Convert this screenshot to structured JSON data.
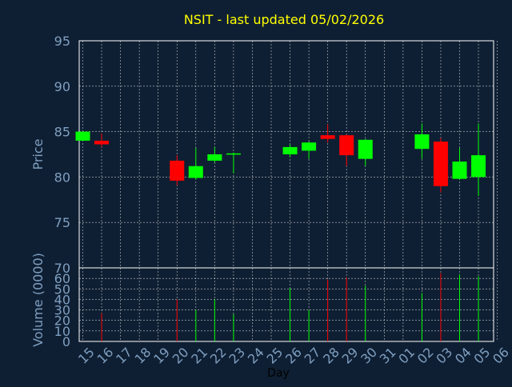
{
  "title": "NSIT - last updated 05/02/2026",
  "colors": {
    "background": "#0f1f33",
    "title": "#ffff00",
    "axis_text": "#7f9fc0",
    "frame": "#ffffff",
    "grid": "#ffffff",
    "up": "#00ff00",
    "down": "#ff0000"
  },
  "chart_data": [
    {
      "type": "candlestick",
      "ylabel": "Price",
      "ylim": [
        70,
        95
      ],
      "yticks": [
        70,
        75,
        80,
        85,
        90,
        95
      ],
      "grid": true,
      "categories": [
        "15",
        "16",
        "17",
        "18",
        "19",
        "20",
        "21",
        "22",
        "23",
        "24",
        "25",
        "26",
        "27",
        "28",
        "29",
        "30",
        "31",
        "01",
        "02",
        "03",
        "04",
        "05",
        "06"
      ],
      "candles": [
        {
          "x": "15",
          "open": 84.0,
          "high": 85.0,
          "low": 84.0,
          "close": 85.0
        },
        {
          "x": "16",
          "open": 84.0,
          "high": 84.8,
          "low": 83.3,
          "close": 83.6
        },
        {
          "x": "20",
          "open": 81.8,
          "high": 82.4,
          "low": 79.1,
          "close": 79.6
        },
        {
          "x": "21",
          "open": 79.9,
          "high": 83.2,
          "low": 79.7,
          "close": 81.2
        },
        {
          "x": "22",
          "open": 81.8,
          "high": 83.3,
          "low": 81.6,
          "close": 82.5
        },
        {
          "x": "23",
          "open": 82.5,
          "high": 82.7,
          "low": 80.4,
          "close": 82.6
        },
        {
          "x": "26",
          "open": 82.5,
          "high": 83.6,
          "low": 82.2,
          "close": 83.3
        },
        {
          "x": "27",
          "open": 82.9,
          "high": 83.9,
          "low": 82.0,
          "close": 83.8
        },
        {
          "x": "28",
          "open": 84.6,
          "high": 85.8,
          "low": 83.8,
          "close": 84.2
        },
        {
          "x": "29",
          "open": 84.6,
          "high": 84.7,
          "low": 81.2,
          "close": 82.4
        },
        {
          "x": "30",
          "open": 82.0,
          "high": 84.2,
          "low": 81.2,
          "close": 84.1
        },
        {
          "x": "02",
          "open": 83.1,
          "high": 85.9,
          "low": 82.0,
          "close": 84.7
        },
        {
          "x": "03",
          "open": 83.9,
          "high": 84.3,
          "low": 78.3,
          "close": 79.0
        },
        {
          "x": "04",
          "open": 79.8,
          "high": 83.2,
          "low": 79.7,
          "close": 81.7
        },
        {
          "x": "05",
          "open": 80.0,
          "high": 85.9,
          "low": 77.9,
          "close": 82.4
        }
      ]
    },
    {
      "type": "bar",
      "ylabel": "Volume (0000)",
      "xlabel": "Day",
      "ylim": [
        0,
        70
      ],
      "yticks": [
        0,
        10,
        20,
        30,
        40,
        50,
        60,
        70
      ],
      "grid": true,
      "bars": [
        {
          "x": "16",
          "value": 27,
          "direction": "down"
        },
        {
          "x": "20",
          "value": 40,
          "direction": "down"
        },
        {
          "x": "21",
          "value": 30,
          "direction": "up"
        },
        {
          "x": "22",
          "value": 40,
          "direction": "up"
        },
        {
          "x": "23",
          "value": 26,
          "direction": "up"
        },
        {
          "x": "26",
          "value": 51,
          "direction": "up"
        },
        {
          "x": "27",
          "value": 30,
          "direction": "up"
        },
        {
          "x": "28",
          "value": 59,
          "direction": "down"
        },
        {
          "x": "29",
          "value": 61,
          "direction": "down"
        },
        {
          "x": "30",
          "value": 53,
          "direction": "up"
        },
        {
          "x": "02",
          "value": 46,
          "direction": "up"
        },
        {
          "x": "03",
          "value": 65,
          "direction": "down"
        },
        {
          "x": "04",
          "value": 64,
          "direction": "up"
        },
        {
          "x": "05",
          "value": 62,
          "direction": "up"
        }
      ]
    }
  ]
}
